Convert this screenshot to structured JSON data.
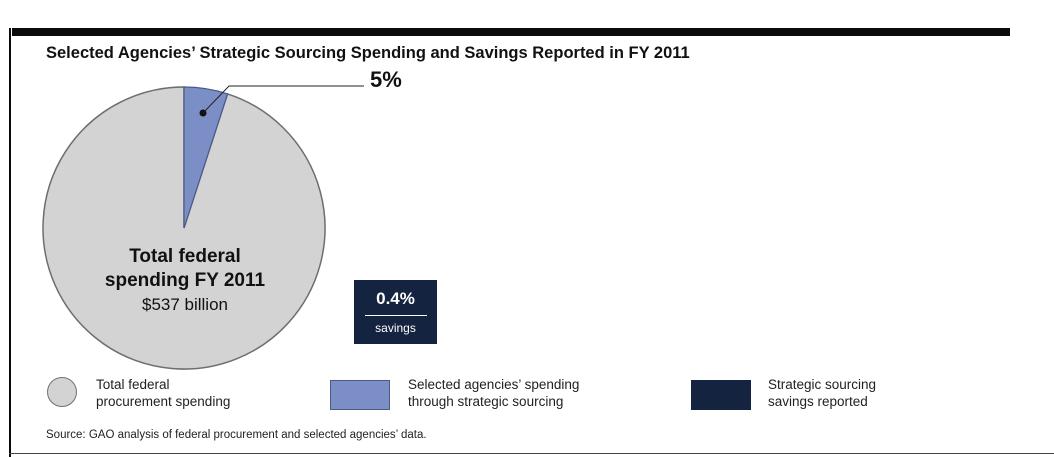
{
  "chart_data": {
    "type": "pie",
    "title": "Selected Agencies’ Strategic Sourcing Spending and Savings Reported in FY 2011",
    "slices": [
      {
        "name": "Total federal procurement spending",
        "value": 95,
        "color": "#d3d3d3"
      },
      {
        "name": "Selected agencies’ spending through strategic sourcing",
        "value": 5,
        "color": "#7b8fc6"
      }
    ],
    "slice_label": "5%",
    "center": {
      "line1": "Total federal",
      "line2": "spending FY 2011",
      "line3": "$537 billion"
    },
    "savings": {
      "value": "0.4%",
      "label": "savings",
      "color": "#14233f"
    },
    "legend": [
      {
        "line1": "Total federal",
        "line2": "procurement spending"
      },
      {
        "line1": "Selected agencies’ spending",
        "line2": "through strategic sourcing"
      },
      {
        "line1": "Strategic sourcing",
        "line2": "savings reported"
      }
    ],
    "source": "Source: GAO analysis of federal procurement and selected agencies’ data."
  }
}
